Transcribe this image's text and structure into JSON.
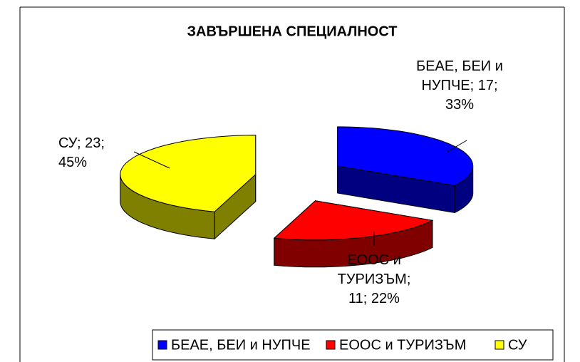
{
  "chart_data": {
    "type": "pie",
    "title": "ЗАВЪРШЕНА СПЕЦИАЛНОСТ",
    "categories": [
      "БЕАЕ, БЕИ и НУПЧЕ",
      "ЕООС и ТУРИЗЪМ",
      "СУ"
    ],
    "values": [
      17,
      11,
      23
    ],
    "value_labels": [
      "БЕАЕ, БЕИ и НУПЧЕ; 17; 33%",
      "ЕООС и ТУРИЗЪМ; 11; 22%",
      "СУ; 23; 45%"
    ],
    "colors": [
      "#0000ff",
      "#ff0000",
      "#ffff00"
    ],
    "side_colors": [
      "#000080",
      "#800000",
      "#808000"
    ],
    "legend": "bottom"
  }
}
